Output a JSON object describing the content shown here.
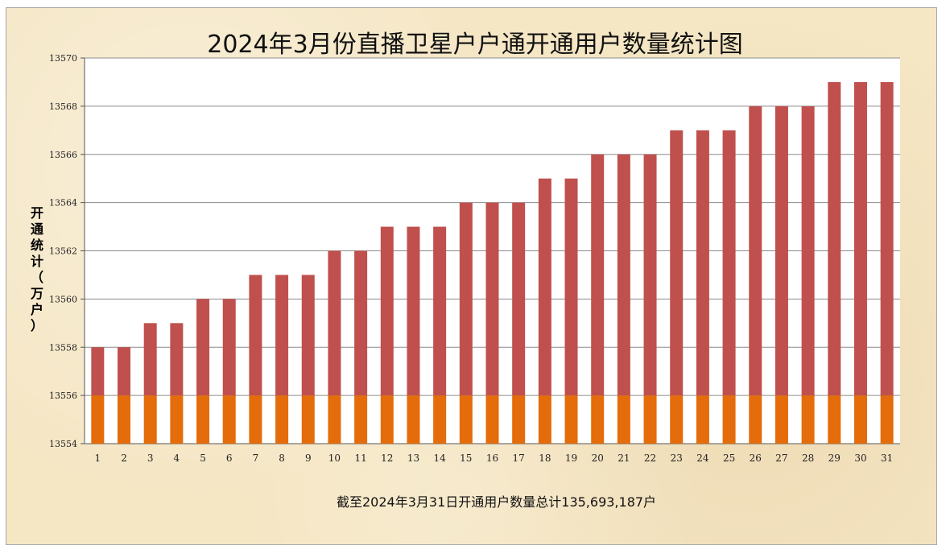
{
  "chart_data": {
    "type": "bar",
    "title": "2024年3月份直播卫星户户通开通用户数量统计图",
    "ylabel": "开通统计（万户）",
    "xlabel": "",
    "categories": [
      "1",
      "2",
      "3",
      "4",
      "5",
      "6",
      "7",
      "8",
      "9",
      "10",
      "11",
      "12",
      "13",
      "14",
      "15",
      "16",
      "17",
      "18",
      "19",
      "20",
      "21",
      "22",
      "23",
      "24",
      "25",
      "26",
      "27",
      "28",
      "29",
      "30",
      "31"
    ],
    "values": [
      13558,
      13558,
      13559,
      13559,
      13560,
      13560,
      13561,
      13561,
      13561,
      13562,
      13562,
      13563,
      13563,
      13563,
      13564,
      13564,
      13564,
      13565,
      13565,
      13566,
      13566,
      13566,
      13567,
      13567,
      13567,
      13568,
      13568,
      13568,
      13569,
      13569,
      13569
    ],
    "base_segment_top": 13556,
    "ylim": [
      13554,
      13570
    ],
    "yticks": [
      "13554",
      "13556",
      "13558",
      "13560",
      "13562",
      "13564",
      "13566",
      "13568",
      "13570"
    ],
    "grid": true,
    "colors": {
      "bar_upper": "#c0504d",
      "bar_lower": "#e46c0a",
      "gridline": "#8c8c8c"
    }
  },
  "footnote": "截至2024年3月31日开通用户数量总计135,693,187户"
}
